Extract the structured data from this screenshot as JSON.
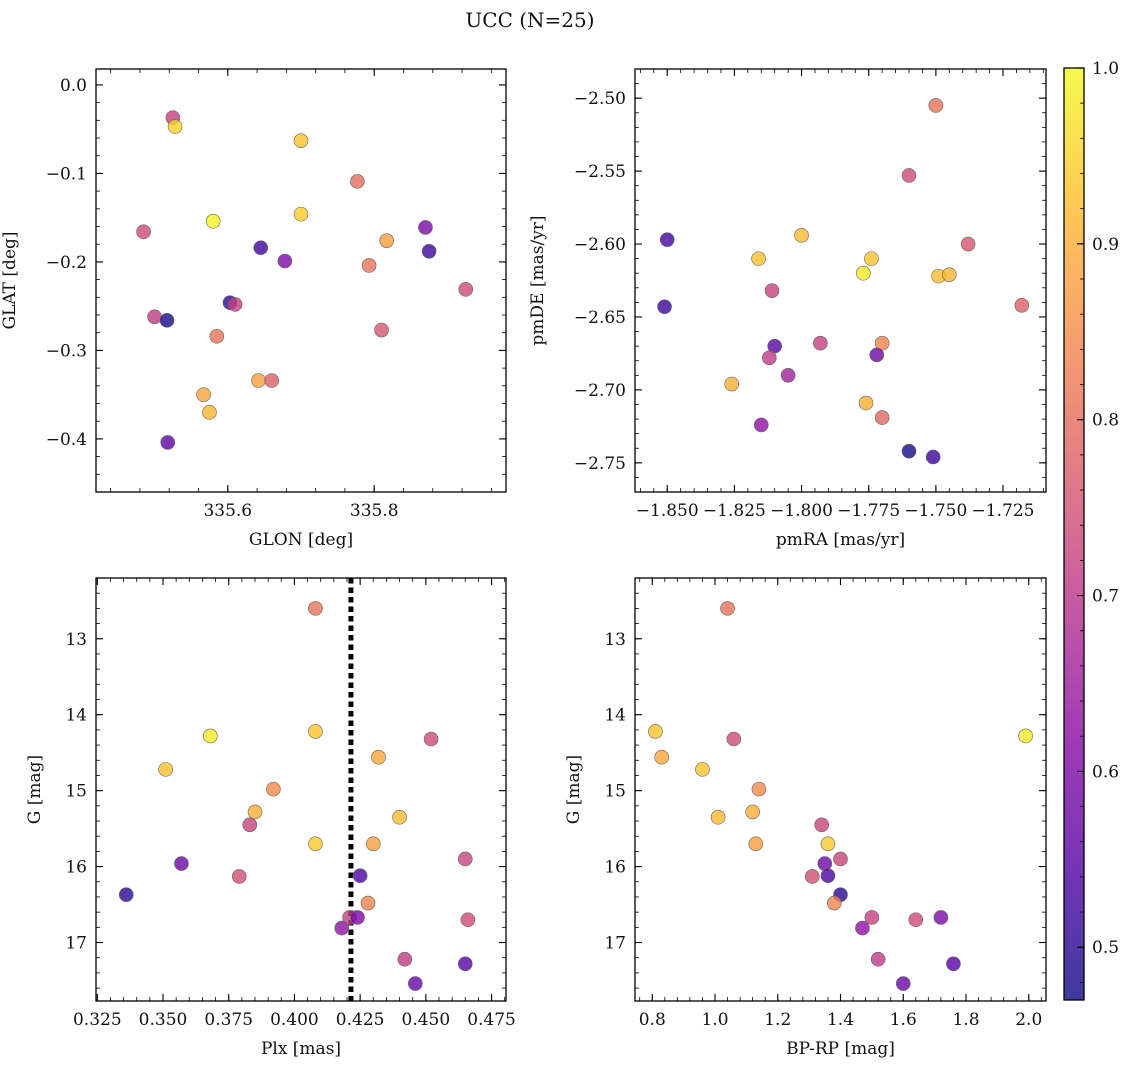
{
  "figure_title": "UCC (N=25)",
  "colormap": {
    "name": "plasma",
    "range": [
      0.47,
      1.0
    ],
    "ticks": [
      0.5,
      0.6,
      0.7,
      0.8,
      0.9,
      1.0
    ],
    "tick_labels": [
      "0.5",
      "0.6",
      "0.7",
      "0.8",
      "0.9",
      "1.0"
    ],
    "stops": [
      "#0d0887",
      "#5302a3",
      "#8b0aa5",
      "#b83289",
      "#db5c68",
      "#f48849",
      "#febd2a",
      "#f0f921"
    ],
    "alpha": 0.8
  },
  "chart_data": [
    {
      "type": "scatter",
      "title": "",
      "xlabel": "GLON [deg]",
      "ylabel": "GLAT [deg]",
      "xlim": [
        335.42,
        335.98
      ],
      "ylim": [
        -0.46,
        0.018
      ],
      "x_ticks": [
        335.6,
        335.8
      ],
      "x_tick_labels": [
        "335.6",
        "335.8"
      ],
      "y_ticks": [
        0.0,
        -0.1,
        -0.2,
        -0.3,
        -0.4
      ],
      "y_tick_labels": [
        "0.0",
        "−0.1",
        "−0.2",
        "−0.3",
        "−0.4"
      ],
      "points": [
        {
          "x": 335.525,
          "y": -0.037,
          "c": 0.72
        },
        {
          "x": 335.528,
          "y": -0.047,
          "c": 0.95
        },
        {
          "x": 335.7,
          "y": -0.063,
          "c": 0.93
        },
        {
          "x": 335.777,
          "y": -0.109,
          "c": 0.8
        },
        {
          "x": 335.7,
          "y": -0.146,
          "c": 0.94
        },
        {
          "x": 335.58,
          "y": -0.154,
          "c": 0.99
        },
        {
          "x": 335.87,
          "y": -0.161,
          "c": 0.6
        },
        {
          "x": 335.485,
          "y": -0.166,
          "c": 0.74
        },
        {
          "x": 335.817,
          "y": -0.176,
          "c": 0.88
        },
        {
          "x": 335.645,
          "y": -0.184,
          "c": 0.53
        },
        {
          "x": 335.875,
          "y": -0.188,
          "c": 0.52
        },
        {
          "x": 335.678,
          "y": -0.199,
          "c": 0.6
        },
        {
          "x": 335.793,
          "y": -0.204,
          "c": 0.81
        },
        {
          "x": 335.925,
          "y": -0.231,
          "c": 0.74
        },
        {
          "x": 335.603,
          "y": -0.246,
          "c": 0.5
        },
        {
          "x": 335.61,
          "y": -0.248,
          "c": 0.72
        },
        {
          "x": 335.5,
          "y": -0.262,
          "c": 0.71
        },
        {
          "x": 335.517,
          "y": -0.266,
          "c": 0.48
        },
        {
          "x": 335.81,
          "y": -0.277,
          "c": 0.76
        },
        {
          "x": 335.585,
          "y": -0.284,
          "c": 0.81
        },
        {
          "x": 335.642,
          "y": -0.334,
          "c": 0.88
        },
        {
          "x": 335.66,
          "y": -0.334,
          "c": 0.78
        },
        {
          "x": 335.567,
          "y": -0.35,
          "c": 0.89
        },
        {
          "x": 335.575,
          "y": -0.37,
          "c": 0.91
        },
        {
          "x": 335.518,
          "y": -0.404,
          "c": 0.56
        }
      ]
    },
    {
      "type": "scatter",
      "title": "",
      "xlabel": "pmRA [mas/yr]",
      "ylabel": "pmDE [mas/yr]",
      "xlim": [
        -1.862,
        -1.709
      ],
      "ylim": [
        -2.77,
        -2.48
      ],
      "x_ticks": [
        -1.85,
        -1.825,
        -1.8,
        -1.775,
        -1.75,
        -1.725
      ],
      "x_tick_labels": [
        "−1.850",
        "−1.825",
        "−1.800",
        "−1.775",
        "−1.750",
        "−1.725"
      ],
      "y_ticks": [
        -2.5,
        -2.55,
        -2.6,
        -2.65,
        -2.7,
        -2.75
      ],
      "y_tick_labels": [
        "−2.50",
        "−2.55",
        "−2.60",
        "−2.65",
        "−2.70",
        "−2.75"
      ],
      "points": [
        {
          "x": -1.75,
          "y": -2.505,
          "c": 0.81
        },
        {
          "x": -1.76,
          "y": -2.553,
          "c": 0.74
        },
        {
          "x": -1.8,
          "y": -2.594,
          "c": 0.92
        },
        {
          "x": -1.85,
          "y": -2.597,
          "c": 0.53
        },
        {
          "x": -1.738,
          "y": -2.6,
          "c": 0.76
        },
        {
          "x": -1.816,
          "y": -2.61,
          "c": 0.93
        },
        {
          "x": -1.774,
          "y": -2.61,
          "c": 0.93
        },
        {
          "x": -1.777,
          "y": -2.62,
          "c": 0.98
        },
        {
          "x": -1.749,
          "y": -2.622,
          "c": 0.92
        },
        {
          "x": -1.745,
          "y": -2.621,
          "c": 0.91
        },
        {
          "x": -1.811,
          "y": -2.632,
          "c": 0.72
        },
        {
          "x": -1.718,
          "y": -2.642,
          "c": 0.78
        },
        {
          "x": -1.851,
          "y": -2.643,
          "c": 0.52
        },
        {
          "x": -1.793,
          "y": -2.668,
          "c": 0.72
        },
        {
          "x": -1.77,
          "y": -2.668,
          "c": 0.84
        },
        {
          "x": -1.81,
          "y": -2.67,
          "c": 0.55
        },
        {
          "x": -1.772,
          "y": -2.676,
          "c": 0.58
        },
        {
          "x": -1.812,
          "y": -2.678,
          "c": 0.71
        },
        {
          "x": -1.805,
          "y": -2.69,
          "c": 0.66
        },
        {
          "x": -1.826,
          "y": -2.696,
          "c": 0.9
        },
        {
          "x": -1.776,
          "y": -2.709,
          "c": 0.9
        },
        {
          "x": -1.77,
          "y": -2.719,
          "c": 0.79
        },
        {
          "x": -1.815,
          "y": -2.724,
          "c": 0.63
        },
        {
          "x": -1.76,
          "y": -2.742,
          "c": 0.48
        },
        {
          "x": -1.751,
          "y": -2.746,
          "c": 0.52
        }
      ]
    },
    {
      "type": "scatter",
      "title": "",
      "xlabel": "Plx [mas]",
      "ylabel": "G [mag]",
      "xlim": [
        0.3245,
        0.4805
      ],
      "ylim": [
        17.77,
        12.2
      ],
      "y_inverted": true,
      "vline_x": 0.4215,
      "x_ticks": [
        0.325,
        0.35,
        0.375,
        0.4,
        0.425,
        0.45,
        0.475
      ],
      "x_tick_labels": [
        "0.325",
        "0.350",
        "0.375",
        "0.400",
        "0.425",
        "0.450",
        "0.475"
      ],
      "y_ticks": [
        13,
        14,
        15,
        16,
        17
      ],
      "y_tick_labels": [
        "13",
        "14",
        "15",
        "16",
        "17"
      ],
      "points": [
        {
          "x": 0.408,
          "y": 12.6,
          "c": 0.81
        },
        {
          "x": 0.368,
          "y": 14.28,
          "c": 0.98
        },
        {
          "x": 0.408,
          "y": 14.22,
          "c": 0.93
        },
        {
          "x": 0.452,
          "y": 14.32,
          "c": 0.74
        },
        {
          "x": 0.351,
          "y": 14.72,
          "c": 0.93
        },
        {
          "x": 0.432,
          "y": 14.56,
          "c": 0.89
        },
        {
          "x": 0.392,
          "y": 14.98,
          "c": 0.85
        },
        {
          "x": 0.385,
          "y": 15.28,
          "c": 0.9
        },
        {
          "x": 0.44,
          "y": 15.35,
          "c": 0.92
        },
        {
          "x": 0.383,
          "y": 15.45,
          "c": 0.73
        },
        {
          "x": 0.408,
          "y": 15.7,
          "c": 0.94
        },
        {
          "x": 0.43,
          "y": 15.7,
          "c": 0.88
        },
        {
          "x": 0.357,
          "y": 15.96,
          "c": 0.58
        },
        {
          "x": 0.465,
          "y": 15.9,
          "c": 0.73
        },
        {
          "x": 0.379,
          "y": 16.13,
          "c": 0.75
        },
        {
          "x": 0.425,
          "y": 16.12,
          "c": 0.54
        },
        {
          "x": 0.336,
          "y": 16.37,
          "c": 0.5
        },
        {
          "x": 0.428,
          "y": 16.48,
          "c": 0.84
        },
        {
          "x": 0.421,
          "y": 16.67,
          "c": 0.72
        },
        {
          "x": 0.424,
          "y": 16.67,
          "c": 0.6
        },
        {
          "x": 0.466,
          "y": 16.7,
          "c": 0.74
        },
        {
          "x": 0.418,
          "y": 16.81,
          "c": 0.63
        },
        {
          "x": 0.442,
          "y": 17.22,
          "c": 0.71
        },
        {
          "x": 0.465,
          "y": 17.28,
          "c": 0.55
        },
        {
          "x": 0.446,
          "y": 17.54,
          "c": 0.57
        }
      ]
    },
    {
      "type": "scatter",
      "title": "",
      "xlabel": "BP-RP [mag]",
      "ylabel": "G [mag]",
      "xlim": [
        0.745,
        2.055
      ],
      "ylim": [
        17.77,
        12.2
      ],
      "y_inverted": true,
      "x_ticks": [
        0.8,
        1.0,
        1.2,
        1.4,
        1.6,
        1.8,
        2.0
      ],
      "x_tick_labels": [
        "0.8",
        "1.0",
        "1.2",
        "1.4",
        "1.6",
        "1.8",
        "2.0"
      ],
      "y_ticks": [
        13,
        14,
        15,
        16,
        17
      ],
      "y_tick_labels": [
        "13",
        "14",
        "15",
        "16",
        "17"
      ],
      "points": [
        {
          "x": 1.04,
          "y": 12.6,
          "c": 0.81
        },
        {
          "x": 0.81,
          "y": 14.22,
          "c": 0.93
        },
        {
          "x": 1.06,
          "y": 14.32,
          "c": 0.74
        },
        {
          "x": 1.99,
          "y": 14.28,
          "c": 0.98
        },
        {
          "x": 0.83,
          "y": 14.56,
          "c": 0.89
        },
        {
          "x": 0.96,
          "y": 14.72,
          "c": 0.93
        },
        {
          "x": 1.14,
          "y": 14.98,
          "c": 0.85
        },
        {
          "x": 1.01,
          "y": 15.35,
          "c": 0.92
        },
        {
          "x": 1.12,
          "y": 15.28,
          "c": 0.9
        },
        {
          "x": 1.34,
          "y": 15.45,
          "c": 0.73
        },
        {
          "x": 1.13,
          "y": 15.7,
          "c": 0.88
        },
        {
          "x": 1.36,
          "y": 15.7,
          "c": 0.94
        },
        {
          "x": 1.35,
          "y": 15.96,
          "c": 0.58
        },
        {
          "x": 1.4,
          "y": 15.9,
          "c": 0.73
        },
        {
          "x": 1.31,
          "y": 16.13,
          "c": 0.75
        },
        {
          "x": 1.36,
          "y": 16.12,
          "c": 0.54
        },
        {
          "x": 1.4,
          "y": 16.37,
          "c": 0.5
        },
        {
          "x": 1.38,
          "y": 16.48,
          "c": 0.84
        },
        {
          "x": 1.5,
          "y": 16.67,
          "c": 0.72
        },
        {
          "x": 1.64,
          "y": 16.7,
          "c": 0.74
        },
        {
          "x": 1.72,
          "y": 16.67,
          "c": 0.6
        },
        {
          "x": 1.47,
          "y": 16.81,
          "c": 0.63
        },
        {
          "x": 1.52,
          "y": 17.22,
          "c": 0.71
        },
        {
          "x": 1.76,
          "y": 17.28,
          "c": 0.55
        },
        {
          "x": 1.6,
          "y": 17.54,
          "c": 0.57
        }
      ]
    }
  ]
}
